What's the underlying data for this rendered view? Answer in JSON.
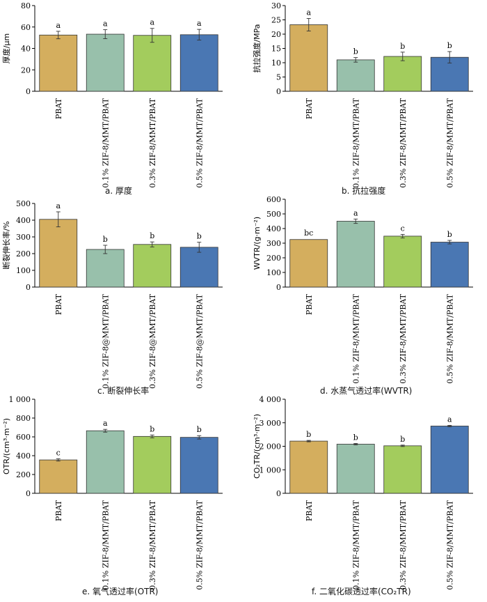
{
  "colors": {
    "PBAT": "#d4ae5e",
    "0.1": "#98c0ab",
    "0.3": "#a3cc5d",
    "0.5": "#4a77b3"
  },
  "chart_data": [
    {
      "type": "bar",
      "caption": "a.  厚度",
      "ylabel": "厚度/μm",
      "categories": [
        "PBAT",
        "0.1% ZIF-8/MMT/PBAT",
        "0.3% ZIF-8/MMT/PBAT",
        "0.5% ZIF-8/MMT/PBAT"
      ],
      "values": [
        52.5,
        53.3,
        52.2,
        52.8
      ],
      "errors": [
        3.5,
        4.2,
        6.5,
        5.0
      ],
      "letters": [
        "a",
        "a",
        "a",
        "a"
      ],
      "ylim": [
        0,
        80
      ],
      "yticks": [
        0,
        20,
        40,
        60,
        80
      ],
      "ytick_labels": [
        "0",
        "20",
        "40",
        "60",
        "80"
      ]
    },
    {
      "type": "bar",
      "caption": "b.  抗拉强度",
      "ylabel": "抗拉强度/MPa",
      "categories": [
        "PBAT",
        "0.1% ZIF-8/MMT/PBAT",
        "0.3% ZIF-8/MMT/PBAT",
        "0.5% ZIF-8/MMT/PBAT"
      ],
      "values": [
        23.3,
        11.0,
        12.2,
        11.9
      ],
      "errors": [
        2.2,
        0.8,
        1.5,
        2.0
      ],
      "letters": [
        "a",
        "b",
        "b",
        "b"
      ],
      "ylim": [
        0,
        30
      ],
      "yticks": [
        0,
        5,
        10,
        15,
        20,
        25,
        30
      ],
      "ytick_labels": [
        "0",
        "5",
        "10",
        "15",
        "20",
        "25",
        "30"
      ]
    },
    {
      "type": "bar",
      "caption": "c.  断裂伸长率",
      "ylabel": "断裂伸长率/%",
      "categories": [
        "PBAT",
        "0.1% ZIF-8@MMT/PBAT",
        "0.3% ZIF-8@MMT/PBAT",
        "0.5% ZIF-8@MMT/PBAT"
      ],
      "values": [
        405,
        225,
        255,
        238
      ],
      "errors": [
        45,
        25,
        15,
        30
      ],
      "letters": [
        "a",
        "b",
        "b",
        "b"
      ],
      "ylim": [
        0,
        500
      ],
      "yticks": [
        0,
        100,
        200,
        300,
        400,
        500
      ],
      "ytick_labels": [
        "0",
        "100",
        "200",
        "300",
        "400",
        "500"
      ]
    },
    {
      "type": "bar",
      "caption": "d.  水蒸气透过率(WVTR)",
      "ylabel": "WVTR/(g·m⁻²)",
      "categories": [
        "PBAT",
        "0.1% ZIF-8/MMT/PBAT",
        "0.3% ZIF-8/MMT/PBAT",
        "0.5% ZIF-8/MMT/PBAT"
      ],
      "values": [
        325,
        450,
        348,
        307
      ],
      "errors": [
        0,
        15,
        12,
        12
      ],
      "letters": [
        "bc",
        "a",
        "c",
        "b"
      ],
      "ylim": [
        0,
        600
      ],
      "yticks": [
        0,
        100,
        200,
        300,
        400,
        500,
        600
      ],
      "ytick_labels": [
        "0",
        "100",
        "200",
        "300",
        "400",
        "500",
        "600"
      ]
    },
    {
      "type": "bar",
      "caption": "e.  氧气透过率(OTR)",
      "ylabel": "OTR/(cm³·m⁻²)",
      "categories": [
        "PBAT",
        "0.1% ZIF-8/MMT/PBAT",
        "0.3% ZIF-8/MMT/PBAT",
        "0.5% ZIF-8/MMT/PBAT"
      ],
      "values": [
        355,
        665,
        605,
        595
      ],
      "errors": [
        12,
        15,
        15,
        18
      ],
      "letters": [
        "c",
        "a",
        "b",
        "b"
      ],
      "ylim": [
        0,
        1000
      ],
      "yticks": [
        0,
        200,
        400,
        600,
        800,
        1000
      ],
      "ytick_labels": [
        "0",
        "200",
        "400",
        "600",
        "800",
        "1 000"
      ]
    },
    {
      "type": "bar",
      "caption": "f.  二氧化碳透过率(CO₂TR)",
      "ylabel": "CO₂TR/(cm³·m⁻²)",
      "categories": [
        "PBAT",
        "0.1% ZIF-8/MMT/PBAT",
        "0.3% ZIF-8/MMT/PBAT",
        "0.5% ZIF-8/MMT/PBAT"
      ],
      "values": [
        2220,
        2090,
        2020,
        2860
      ],
      "errors": [
        30,
        30,
        30,
        30
      ],
      "letters": [
        "b",
        "b",
        "b",
        "a"
      ],
      "ylim": [
        0,
        4000
      ],
      "yticks": [
        0,
        1000,
        2000,
        3000,
        4000
      ],
      "ytick_labels": [
        "0",
        "1 000",
        "2 000",
        "3 000",
        "4 000"
      ]
    }
  ]
}
